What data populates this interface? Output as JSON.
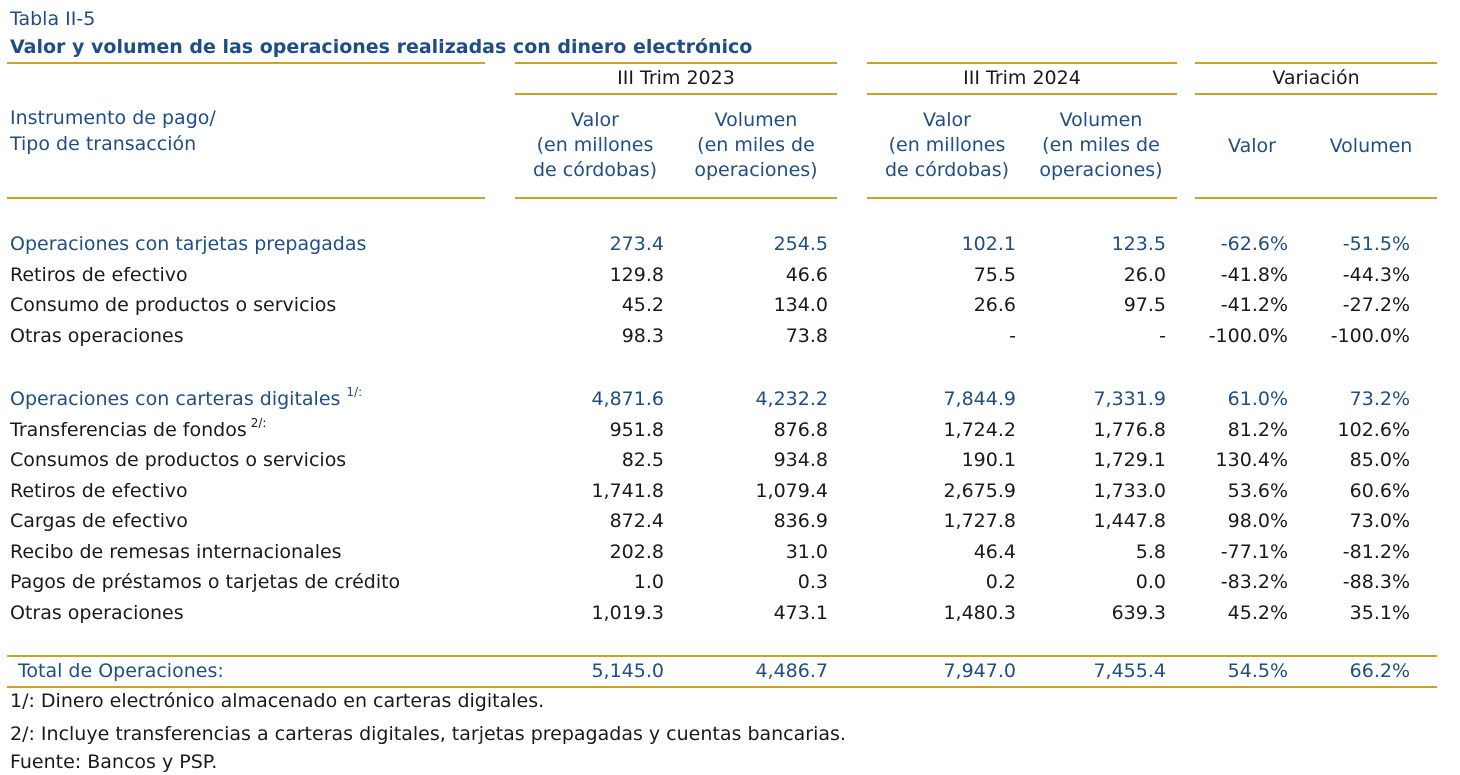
{
  "table_label": "Tabla II-5",
  "table_title": "Valor y volumen de las operaciones realizadas con dinero electrónico",
  "header": {
    "row_header_line1": "Instrumento de pago/",
    "row_header_line2": "Tipo de transacción",
    "group_2023": "III Trim 2023",
    "group_2024": "III Trim 2024",
    "group_var": "Variación",
    "col_valor": [
      "Valor",
      "(en millones",
      "de córdobas)"
    ],
    "col_volumen": [
      "Volumen",
      "(en miles de",
      "operaciones)"
    ],
    "col_var_valor": "Valor",
    "col_var_volumen": "Volumen"
  },
  "sections": [
    {
      "title": {
        "label": "Operaciones con tarjetas prepagadas",
        "sup": "",
        "values": [
          "273.4",
          "254.5",
          "102.1",
          "123.5",
          "-62.6%",
          "-51.5%"
        ]
      },
      "rows": [
        {
          "label": "Retiros de efectivo",
          "sup": "",
          "values": [
            "129.8",
            "46.6",
            "75.5",
            "26.0",
            "-41.8%",
            "-44.3%"
          ]
        },
        {
          "label": "Consumo de productos o servicios",
          "sup": "",
          "values": [
            "45.2",
            "134.0",
            "26.6",
            "97.5",
            "-41.2%",
            "-27.2%"
          ]
        },
        {
          "label": "Otras operaciones",
          "sup": "",
          "values": [
            "98.3",
            "73.8",
            "-",
            "-",
            "-100.0%",
            "-100.0%"
          ]
        }
      ]
    },
    {
      "title": {
        "label": "Operaciones con carteras digitales",
        "sup": "1/:",
        "values": [
          "4,871.6",
          "4,232.2",
          "7,844.9",
          "7,331.9",
          "61.0%",
          "73.2%"
        ]
      },
      "rows": [
        {
          "label": "Transferencias de fondos",
          "sup": "2/:",
          "values": [
            "951.8",
            "876.8",
            "1,724.2",
            "1,776.8",
            "81.2%",
            "102.6%"
          ]
        },
        {
          "label": "Consumos de productos o servicios",
          "sup": "",
          "values": [
            "82.5",
            "934.8",
            "190.1",
            "1,729.1",
            "130.4%",
            "85.0%"
          ]
        },
        {
          "label": "Retiros de efectivo",
          "sup": "",
          "values": [
            "1,741.8",
            "1,079.4",
            "2,675.9",
            "1,733.0",
            "53.6%",
            "60.6%"
          ]
        },
        {
          "label": "Cargas de efectivo",
          "sup": "",
          "values": [
            "872.4",
            "836.9",
            "1,727.8",
            "1,447.8",
            "98.0%",
            "73.0%"
          ]
        },
        {
          "label": "Recibo de remesas internacionales",
          "sup": "",
          "values": [
            "202.8",
            "31.0",
            "46.4",
            "5.8",
            "-77.1%",
            "-81.2%"
          ]
        },
        {
          "label": "Pagos de préstamos o tarjetas de crédito",
          "sup": "",
          "values": [
            "1.0",
            "0.3",
            "0.2",
            "0.0",
            "-83.2%",
            "-88.3%"
          ]
        },
        {
          "label": "Otras operaciones",
          "sup": "",
          "values": [
            "1,019.3",
            "473.1",
            "1,480.3",
            "639.3",
            "45.2%",
            "35.1%"
          ]
        }
      ]
    }
  ],
  "total": {
    "label": "Total de Operaciones:",
    "values": [
      "5,145.0",
      "4,486.7",
      "7,947.0",
      "7,455.4",
      "54.5%",
      "66.2%"
    ]
  },
  "notes": [
    "1/: Dinero electrónico almacenado en carteras digitales.",
    "2/: Incluye transferencias a carteras digitales, tarjetas prepagadas y cuentas bancarias.",
    "Fuente: Bancos y PSP."
  ],
  "colors": {
    "accent_blue": "#1f4e86",
    "rule_gold": "#c9a227",
    "text": "#1a1a1a"
  }
}
